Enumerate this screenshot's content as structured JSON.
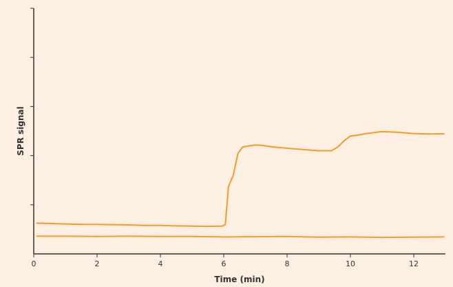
{
  "chart_data": {
    "type": "line",
    "title": "",
    "xlabel": "Time (min)",
    "ylabel": "SPR signal",
    "xlim": [
      0,
      13
    ],
    "ylim": [
      0,
      100
    ],
    "xticks": [
      0,
      2,
      4,
      6,
      8,
      10,
      12
    ],
    "xtick_labels": [
      "0",
      "2",
      "4",
      "6",
      "8",
      "10",
      "12"
    ],
    "yticks_unlabeled": [
      20,
      40,
      60,
      80,
      100
    ],
    "grid": false,
    "legend": "none",
    "background_color": "#fdf0e2",
    "axis_color": "#333333",
    "series": [
      {
        "color": "#f39c2a",
        "x": [
          0.1,
          0.5,
          1.0,
          1.5,
          2.0,
          2.5,
          3.0,
          3.5,
          4.0,
          4.5,
          5.0,
          5.5,
          5.95,
          6.05,
          6.15,
          6.3,
          6.45,
          6.6,
          6.8,
          7.0,
          7.2,
          7.5,
          8.0,
          8.5,
          9.0,
          9.4,
          9.6,
          9.8,
          10.0,
          10.2,
          10.5,
          11.0,
          11.5,
          12.0,
          12.5,
          12.95
        ],
        "y": [
          12.5,
          12.4,
          12.2,
          12.0,
          12.0,
          11.9,
          11.8,
          11.6,
          11.6,
          11.4,
          11.3,
          11.2,
          11.3,
          12.0,
          27.5,
          32.0,
          41.0,
          43.5,
          44.0,
          44.3,
          44.2,
          43.6,
          43.0,
          42.5,
          42.0,
          42.0,
          43.5,
          46.0,
          48.0,
          48.3,
          49.0,
          49.8,
          49.5,
          49.0,
          48.8,
          48.9
        ]
      },
      {
        "color": "#f39c2a",
        "x": [
          0.1,
          1.0,
          2.0,
          3.0,
          4.0,
          5.0,
          6.0,
          7.0,
          8.0,
          9.0,
          10.0,
          11.0,
          12.0,
          12.95
        ],
        "y": [
          7.2,
          7.2,
          7.1,
          7.2,
          7.1,
          7.1,
          6.9,
          7.0,
          7.1,
          6.8,
          6.9,
          6.7,
          6.8,
          6.9
        ]
      }
    ]
  }
}
